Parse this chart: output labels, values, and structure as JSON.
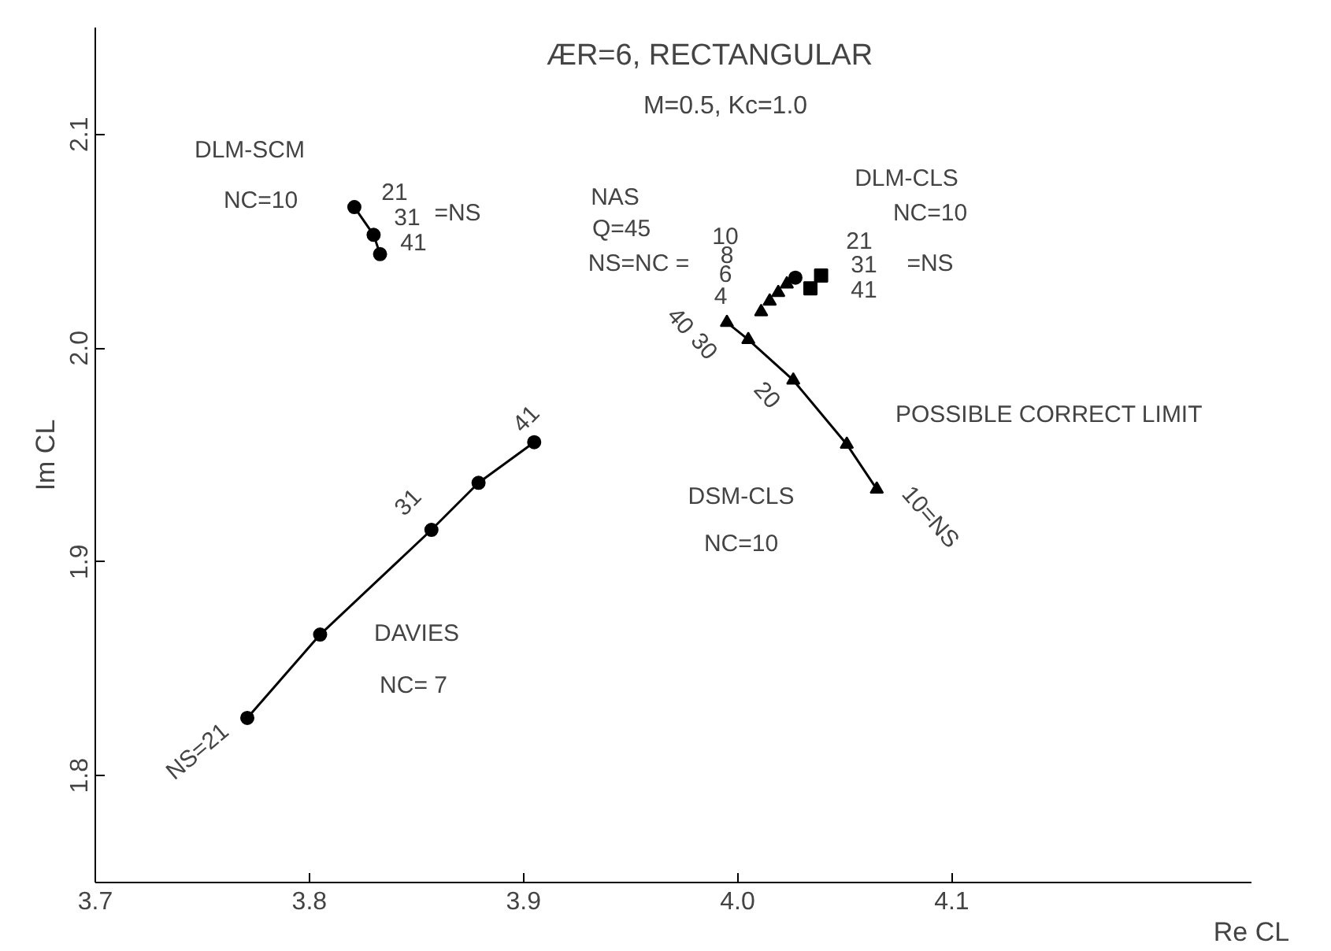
{
  "chart_data": {
    "type": "line",
    "title": "ÆR=6, RECTANGULAR",
    "subtitle": "M=0.5, Kc=1.0",
    "xlabel": "Re CL",
    "ylabel": "Im CL",
    "xlim": [
      3.7,
      4.24
    ],
    "ylim": [
      1.75,
      2.15
    ],
    "xticks": [
      3.7,
      3.8,
      3.9,
      {
        "value": 4.0,
        "label": "4.0"
      },
      4.1
    ],
    "yticks": [
      1.8,
      1.9,
      {
        "value": 2.0,
        "label": "2.0"
      },
      2.1
    ],
    "grid": false,
    "series": [
      {
        "marker": "circle",
        "color": "#000000",
        "x": [
          3.771,
          3.805,
          3.857,
          3.879,
          3.905
        ],
        "values": [
          1.827,
          1.866,
          1.915,
          1.937,
          1.956
        ]
      },
      {
        "marker": "circle",
        "color": "#000000",
        "x": [
          3.821,
          3.83,
          3.833
        ],
        "values": [
          2.066,
          2.053,
          2.044
        ]
      },
      {
        "type": "scatter",
        "marker": "triangle",
        "color": "#000000",
        "x": [
          4.011,
          4.015,
          4.019,
          4.023
        ],
        "values": [
          2.017,
          2.022,
          2.026,
          2.03
        ]
      },
      {
        "type": "scatter",
        "marker": "circle",
        "color": "#000000",
        "x": [
          4.027
        ],
        "values": [
          2.033
        ]
      },
      {
        "type": "scatter",
        "marker": "square",
        "color": "#000000",
        "x": [
          4.039,
          4.034
        ],
        "values": [
          2.034,
          2.028
        ]
      },
      {
        "marker": "triangle",
        "color": "#000000",
        "x": [
          4.065,
          4.051,
          4.026,
          4.005,
          3.995
        ],
        "values": [
          1.934,
          1.955,
          1.985,
          2.004,
          2.012
        ]
      }
    ],
    "annotations": [
      "DLM-SCM",
      "NC=10",
      "21",
      "31",
      "41",
      "=NS",
      "NAS",
      "Q=45",
      "NS=NC =",
      "10",
      "8",
      "6",
      "4",
      "DLM-CLS",
      "NC=10",
      "21",
      "31",
      "41",
      "=NS",
      "POSSIBLE CORRECT LIMIT",
      "DSM-CLS",
      "NC=10",
      "10=NS",
      "40",
      "30",
      "20",
      "DAVIES",
      "NC= 7",
      "NS=21",
      "31",
      "41"
    ]
  }
}
